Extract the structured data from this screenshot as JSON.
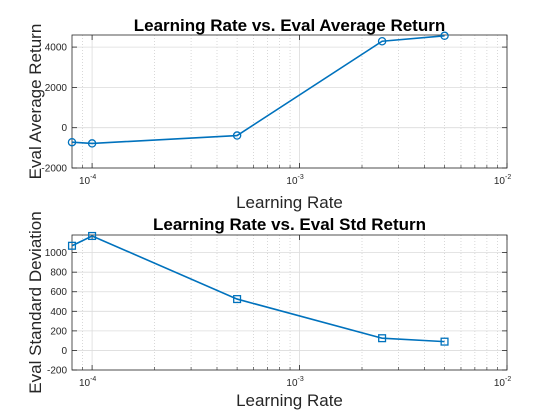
{
  "chart_data": [
    {
      "type": "line",
      "title": "Learning Rate vs. Eval Average Return",
      "xlabel": "Learning Rate",
      "ylabel": "Eval Average Return",
      "x_scale": "log",
      "xlim": [
        8e-05,
        0.01
      ],
      "ylim": [
        -2000,
        4600
      ],
      "x_tick_labels": [
        {
          "base": "10",
          "exp": "-4",
          "value": 0.0001
        },
        {
          "base": "10",
          "exp": "-3",
          "value": 0.001
        },
        {
          "base": "10",
          "exp": "-2",
          "value": 0.01
        }
      ],
      "y_ticks": [
        -2000,
        0,
        2000,
        4000
      ],
      "y_tick_labels": [
        "-2000",
        "0",
        "2000",
        "4000"
      ],
      "grid": true,
      "marker": "circle",
      "color": "#0072BD",
      "x": [
        8e-05,
        0.0001,
        0.0005,
        0.0025,
        0.005
      ],
      "y": [
        -720,
        -780,
        -390,
        4290,
        4560
      ]
    },
    {
      "type": "line",
      "title": "Learning Rate vs. Eval Std Return",
      "xlabel": "Learning Rate",
      "ylabel": "Eval Standard Deviation",
      "x_scale": "log",
      "xlim": [
        8e-05,
        0.01
      ],
      "ylim": [
        -200,
        1180
      ],
      "x_tick_labels": [
        {
          "base": "10",
          "exp": "-4",
          "value": 0.0001
        },
        {
          "base": "10",
          "exp": "-3",
          "value": 0.001
        },
        {
          "base": "10",
          "exp": "-2",
          "value": 0.01
        }
      ],
      "y_ticks": [
        -200,
        0,
        200,
        400,
        600,
        800,
        1000
      ],
      "y_tick_labels": [
        "-200",
        "0",
        "200",
        "400",
        "600",
        "800",
        "1000"
      ],
      "grid": true,
      "marker": "square",
      "color": "#0072BD",
      "x": [
        8e-05,
        0.0001,
        0.0005,
        0.0025,
        0.005
      ],
      "y": [
        1070,
        1170,
        525,
        125,
        90
      ]
    }
  ]
}
